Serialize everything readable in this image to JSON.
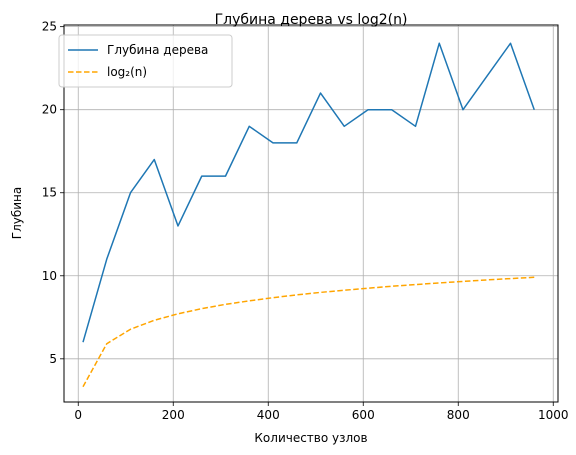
{
  "chart_data": {
    "type": "line",
    "title": "Глубина дерева vs log2(n)",
    "xlabel": "Количество узлов",
    "ylabel": "Глубина",
    "xlim": [
      -30,
      1010
    ],
    "ylim": [
      2.4,
      25.1
    ],
    "xticks": [
      0,
      200,
      400,
      600,
      800,
      1000
    ],
    "yticks": [
      5,
      10,
      15,
      20,
      25
    ],
    "grid": true,
    "legend_position": "top-left",
    "x": [
      10,
      60,
      110,
      160,
      210,
      260,
      310,
      360,
      410,
      460,
      510,
      560,
      610,
      660,
      710,
      760,
      810,
      860,
      910,
      960
    ],
    "series": [
      {
        "name": "Глубина дерева",
        "color": "#1f77b4",
        "style": "solid",
        "values": [
          6,
          11,
          15,
          17,
          13,
          16,
          16,
          19,
          18,
          18,
          21,
          19,
          20,
          20,
          19,
          24,
          20,
          22,
          24,
          20
        ]
      },
      {
        "name": "log₂(n)",
        "color": "#ffa500",
        "style": "dashed",
        "values": [
          3.32,
          5.91,
          6.78,
          7.32,
          7.71,
          8.02,
          8.28,
          8.49,
          8.68,
          8.85,
          9.0,
          9.13,
          9.25,
          9.37,
          9.47,
          9.57,
          9.66,
          9.75,
          9.83,
          9.91
        ]
      }
    ]
  }
}
